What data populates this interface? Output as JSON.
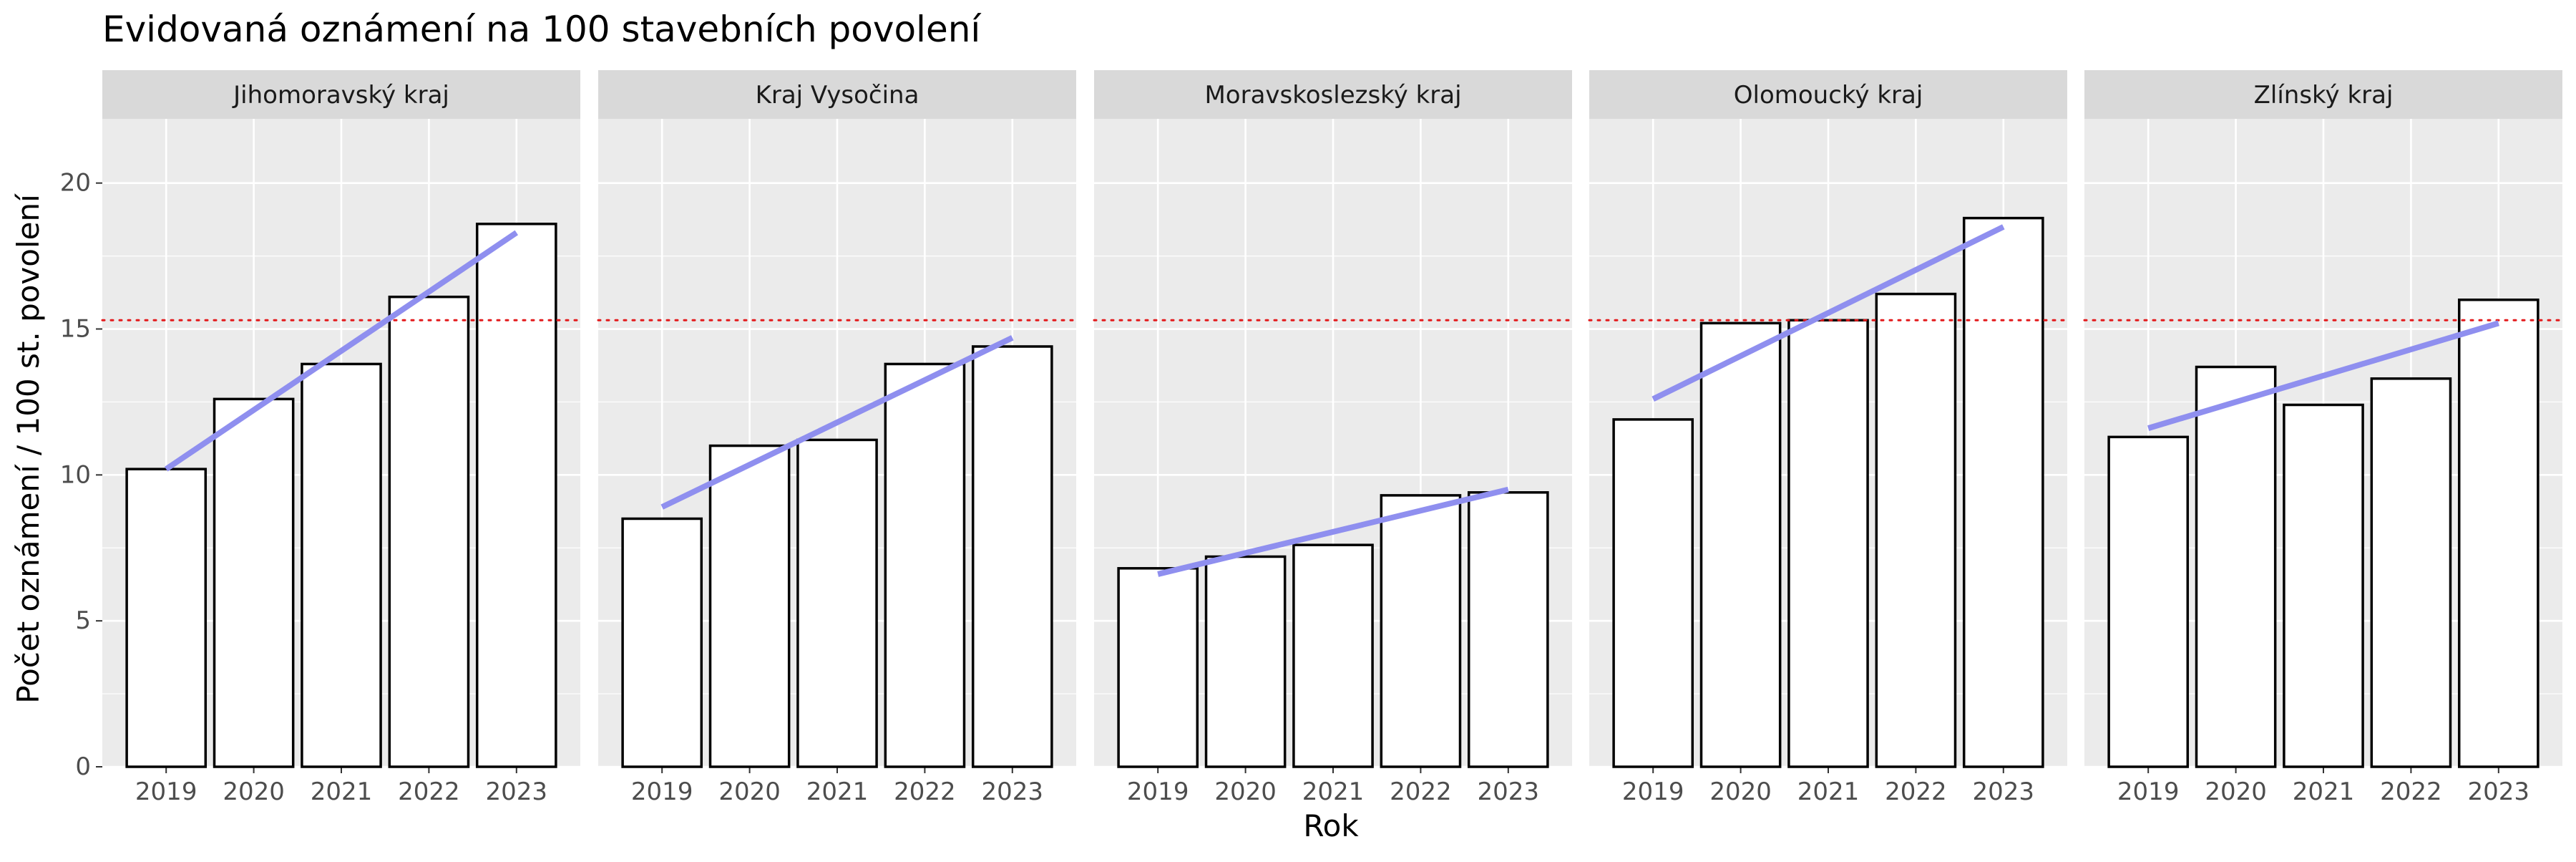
{
  "chart_data": {
    "type": "bar",
    "title": "Evidovaná oznámení na 100 stavebních povolení",
    "xlabel": "Rok",
    "ylabel": "Počet oznámení / 100 st. povolení",
    "categories": [
      "2019",
      "2020",
      "2021",
      "2022",
      "2023"
    ],
    "ylim": [
      0,
      22.2
    ],
    "yticks": [
      0,
      5,
      10,
      15,
      20
    ],
    "grid": true,
    "legend": "none",
    "reference_line": {
      "value": 15.3,
      "style": "dotted",
      "color": "#e31a1c"
    },
    "colors": {
      "bar_fill": "#ffffff",
      "bar_stroke": "#000000",
      "trend": "#8f8fef",
      "panel_bg": "#ebebeb",
      "strip_bg": "#d9d9d9",
      "grid": "#ffffff",
      "reference": "#e31a1c"
    },
    "panels": [
      {
        "name": "Jihomoravský kraj",
        "values": [
          10.2,
          12.6,
          13.8,
          16.1,
          18.6
        ],
        "trend": [
          10.2,
          18.3
        ]
      },
      {
        "name": "Kraj Vysočina",
        "values": [
          8.5,
          11.0,
          11.2,
          13.8,
          14.4
        ],
        "trend": [
          8.9,
          14.7
        ]
      },
      {
        "name": "Moravskoslezský kraj",
        "values": [
          6.8,
          7.2,
          7.6,
          9.3,
          9.4
        ],
        "trend": [
          6.6,
          9.5
        ]
      },
      {
        "name": "Olomoucký kraj",
        "values": [
          11.9,
          15.2,
          15.3,
          16.2,
          18.8
        ],
        "trend": [
          12.6,
          18.5
        ]
      },
      {
        "name": "Zlínský kraj",
        "values": [
          11.3,
          13.7,
          12.4,
          13.3,
          16.0
        ],
        "trend": [
          11.6,
          15.2
        ]
      }
    ]
  }
}
